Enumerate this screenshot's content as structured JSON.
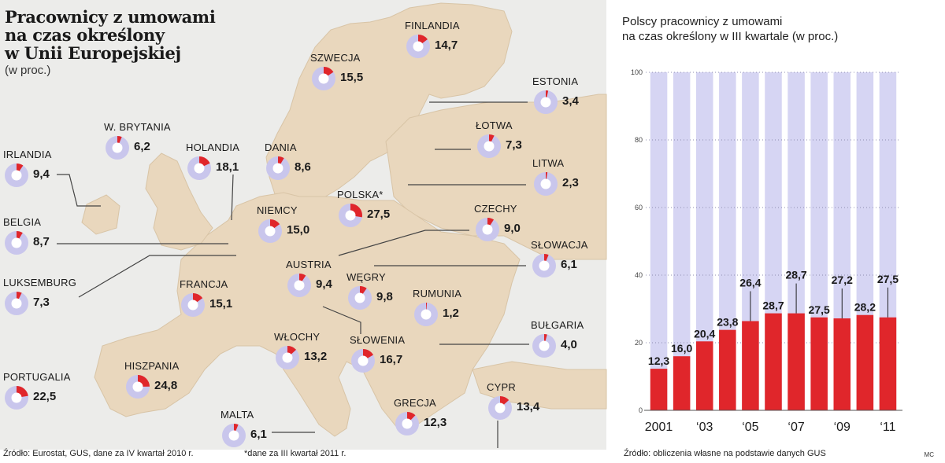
{
  "chart_data": [
    {
      "type": "pie",
      "title": "Pracownicy z umowami\nna czas określony\nw Unii Europejskiej",
      "subtitle": "(w proc.)",
      "footnote": "*dane za III kwartał 2011 r.",
      "source": "Źródło: Eurostat, GUS, dane za IV kwartał 2010 r.",
      "colors": {
        "share": "#e0262b",
        "rest": "#c9c6ec",
        "land": "#e9d7bd",
        "sea": "#ececea"
      },
      "categories": [
        "FINLANDIA",
        "SZWECJA",
        "ESTONIA",
        "W. BRYTANIA",
        "ŁOTWA",
        "IRLANDIA",
        "HOLANDIA",
        "DANIA",
        "LITWA",
        "POLSKA*",
        "BELGIA",
        "NIEMCY",
        "CZECHY",
        "SŁOWACJA",
        "AUSTRIA",
        "LUKSEMBURG",
        "FRANCJA",
        "WĘGRY",
        "RUMUNIA",
        "BUŁGARIA",
        "WŁOCHY",
        "SŁOWENIA",
        "PORTUGALIA",
        "HISZPANIA",
        "CYPR",
        "GRECJA",
        "MALTA"
      ],
      "values": [
        14.7,
        15.5,
        3.4,
        6.2,
        7.3,
        9.4,
        18.1,
        8.6,
        2.3,
        27.5,
        8.7,
        15.0,
        9.0,
        6.1,
        9.4,
        7.3,
        15.1,
        9.8,
        1.2,
        4.0,
        13.2,
        16.7,
        22.5,
        24.8,
        13.4,
        12.3,
        6.1
      ],
      "value_labels": [
        "14,7",
        "15,5",
        "3,4",
        "6,2",
        "7,3",
        "9,4",
        "18,1",
        "8,6",
        "2,3",
        "27,5",
        "8,7",
        "15,0",
        "9,0",
        "6,1",
        "9,4",
        "7,3",
        "15,1",
        "9,8",
        "1,2",
        "4,0",
        "13,2",
        "16,7",
        "22,5",
        "24,8",
        "13,4",
        "12,3",
        "6,1"
      ]
    },
    {
      "type": "bar",
      "title": "Polscy pracownicy z umowami\nna czas określony w III kwartale (w proc.)",
      "source": "Źródło: obliczenia własne na podstawie danych GUS",
      "credit": "MC",
      "categories": [
        "2001",
        "2002",
        "2003",
        "2004",
        "2005",
        "2006",
        "2007",
        "2008",
        "2009",
        "2010",
        "2011"
      ],
      "values": [
        12.3,
        16.0,
        20.4,
        23.8,
        26.4,
        28.7,
        28.7,
        27.5,
        27.2,
        28.2,
        27.5
      ],
      "value_labels": [
        "12,3",
        "16,0",
        "20,4",
        "23,8",
        "26,4",
        "28,7",
        "28,7",
        "27,5",
        "27,2",
        "28,2",
        "27,5"
      ],
      "tick_labels": [
        "2001",
        "",
        "‘03",
        "",
        "‘05",
        "",
        "‘07",
        "",
        "‘09",
        "",
        "‘11"
      ],
      "ylim": [
        0,
        100
      ],
      "yticks": [
        "0",
        "20",
        "40",
        "60",
        "80",
        "100"
      ],
      "colors": {
        "bar": "#e0262b",
        "background_bar": "#d6d5f3"
      }
    }
  ]
}
